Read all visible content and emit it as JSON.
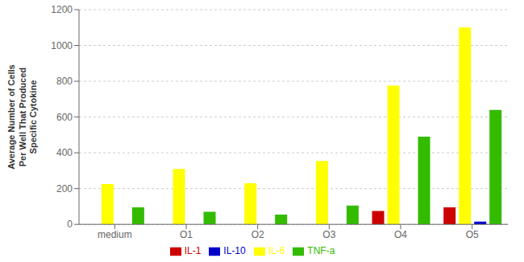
{
  "chart_data": {
    "type": "bar",
    "categories": [
      "medium",
      "O1",
      "O2",
      "O3",
      "O4",
      "O5"
    ],
    "series": [
      {
        "name": "IL-1",
        "color": "#cc0000",
        "values": [
          0,
          0,
          0,
          0,
          75,
          95
        ]
      },
      {
        "name": "IL-6",
        "color": "#ffff00",
        "values": [
          225,
          310,
          230,
          355,
          775,
          1100
        ]
      },
      {
        "name": "IL-10",
        "color": "#0000cc",
        "values": [
          0,
          0,
          0,
          0,
          0,
          15
        ]
      },
      {
        "name": "TNF-a",
        "color": "#33bb00",
        "values": [
          95,
          70,
          55,
          105,
          490,
          640
        ]
      }
    ],
    "y_label": "Average Number of Cells\nPer Well That Produced\nSpecific Cytokine",
    "ylim": [
      0,
      1200
    ],
    "yticks": [
      0,
      200,
      400,
      600,
      800,
      1000,
      1200
    ],
    "grid": true,
    "legend": "bottom"
  }
}
